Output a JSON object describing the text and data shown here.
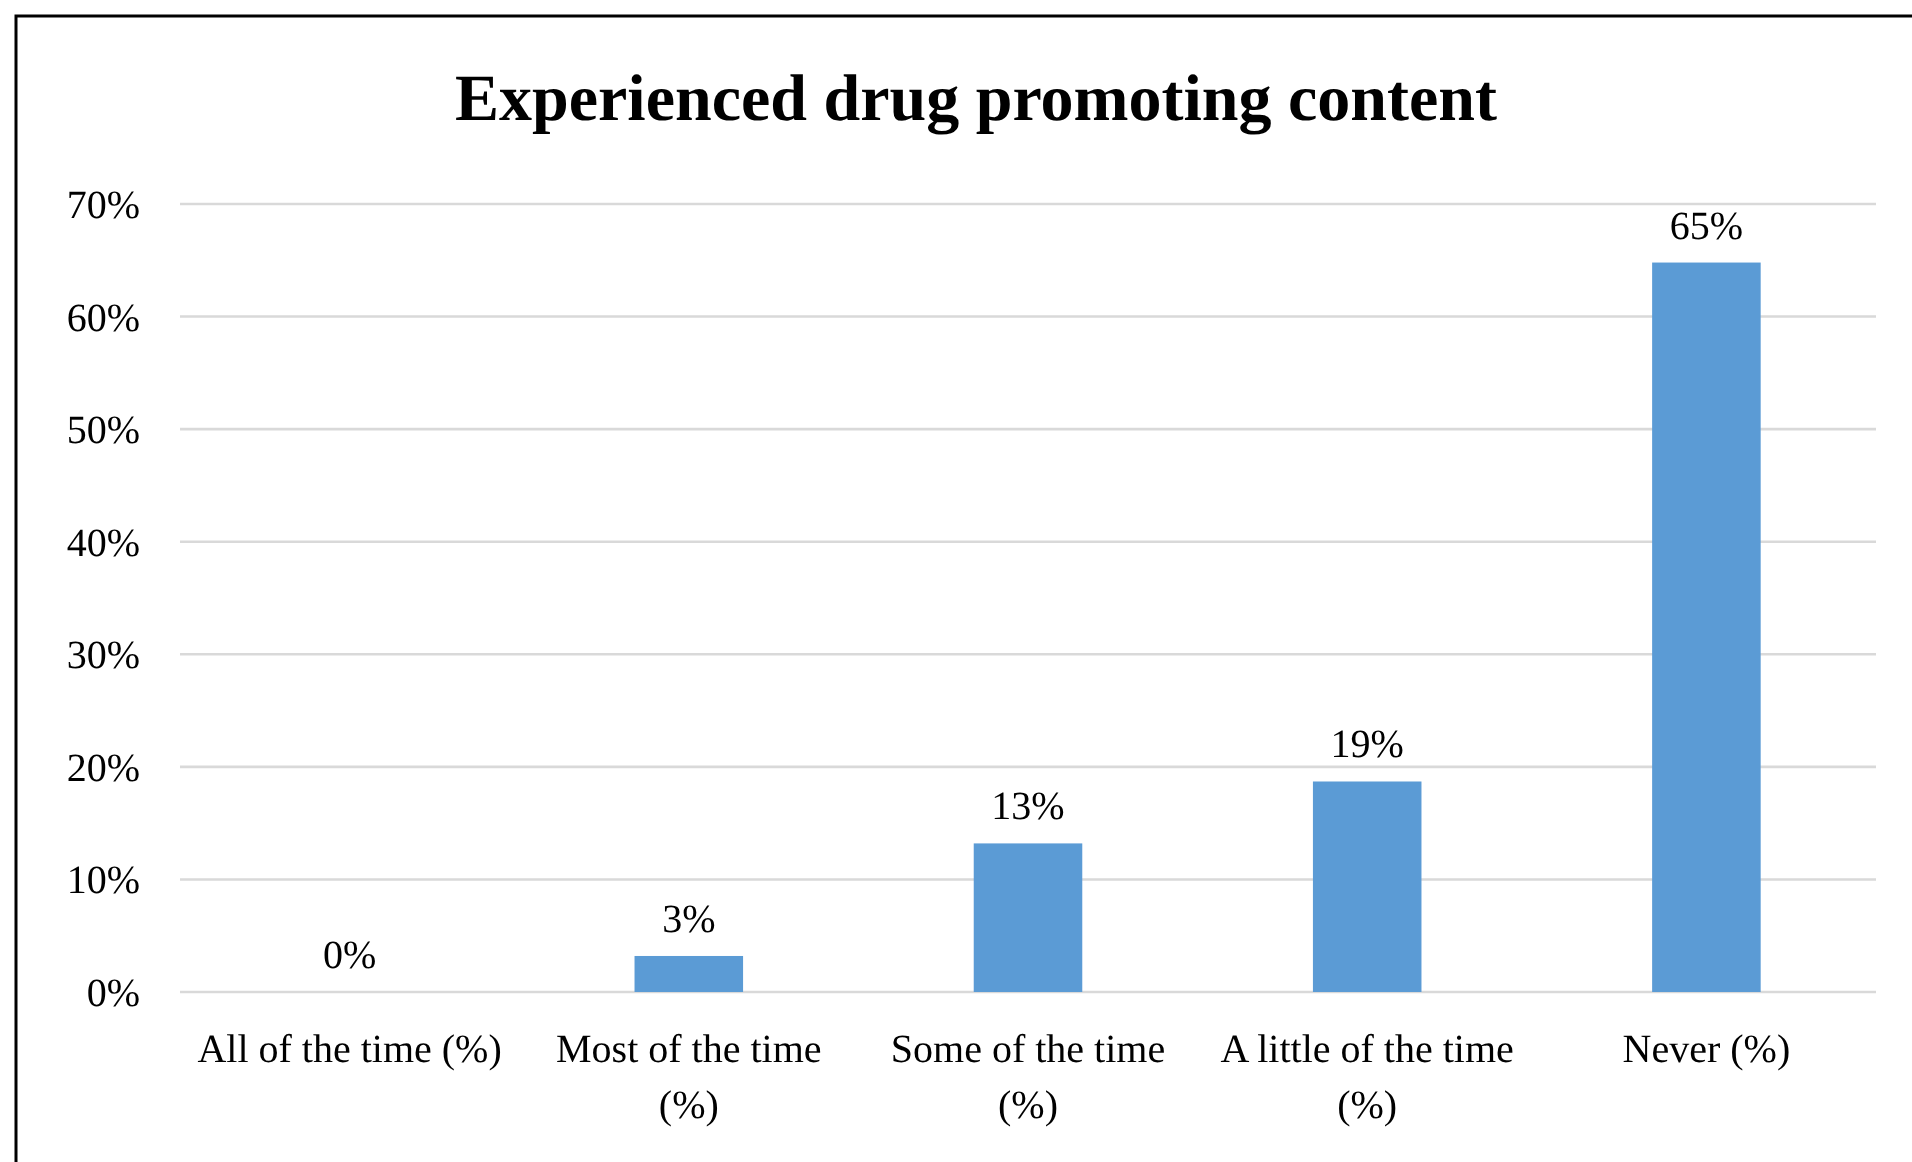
{
  "chart_data": {
    "type": "bar",
    "title": "Experienced drug promoting content",
    "categories": [
      "All of the time (%)",
      "Most of the time (%)",
      "Some of the time (%)",
      "A little of the time (%)",
      "Never (%)"
    ],
    "values": [
      0,
      3.2,
      13.2,
      18.7,
      64.8
    ],
    "color": "#5b9bd5",
    "value_labels": [
      "0%",
      "3%",
      "13%",
      "19%",
      "65%"
    ],
    "ylim": [
      0,
      70
    ],
    "yticks": [
      {
        "value": 0,
        "label": "0%"
      },
      {
        "value": 10,
        "label": "10%"
      },
      {
        "value": 20,
        "label": "20%"
      },
      {
        "value": 30,
        "label": "30%"
      },
      {
        "value": 40,
        "label": "40%"
      },
      {
        "value": 50,
        "label": "50%"
      },
      {
        "value": 60,
        "label": "60%"
      },
      {
        "value": 70,
        "label": "70%"
      }
    ],
    "grid": "y"
  }
}
